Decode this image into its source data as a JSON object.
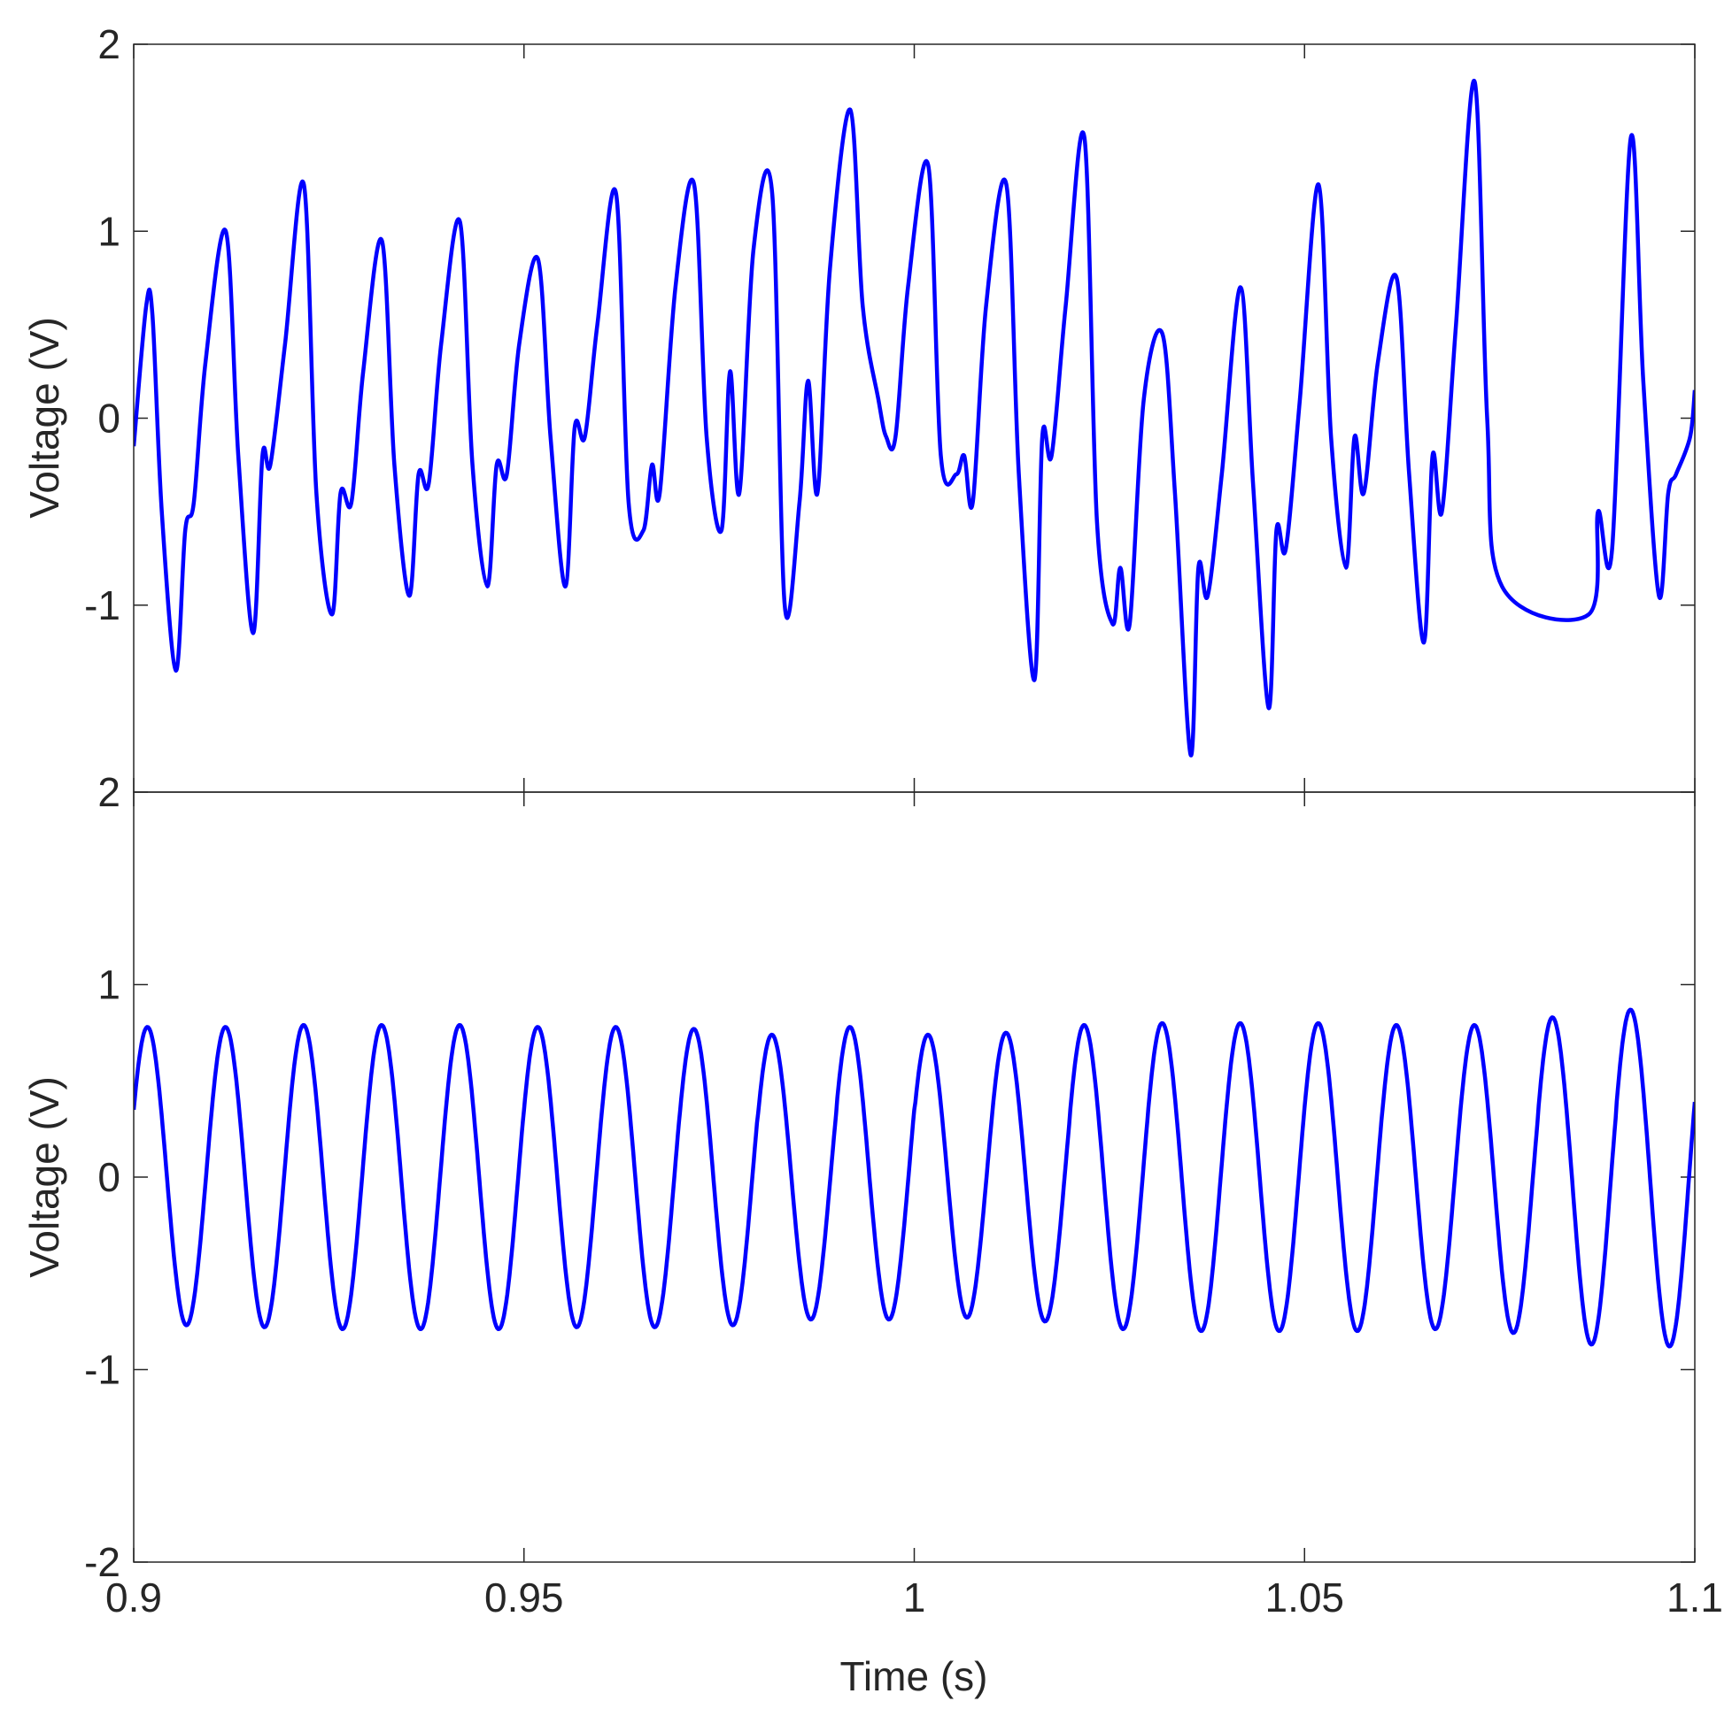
{
  "chart_data": [
    {
      "type": "line",
      "panel": "top",
      "title": "",
      "xlabel": "",
      "ylabel": "Voltage (V)",
      "xlim": [
        0.9,
        1.1
      ],
      "ylim": [
        -2,
        2
      ],
      "yticks": [
        -1,
        0,
        1,
        2
      ],
      "ytick_labels": [
        "-1",
        "0",
        "1",
        "2"
      ],
      "xticks": [
        0.9,
        0.95,
        1.0,
        1.05,
        1.1
      ],
      "grid": false,
      "series": [
        {
          "color": "#0000ff",
          "x": [
            0.9,
            0.9016,
            0.9024,
            0.9036,
            0.9054,
            0.9066,
            0.9077,
            0.9092,
            0.9118,
            0.9134,
            0.9153,
            0.9165,
            0.9175,
            0.9194,
            0.9218,
            0.9234,
            0.9254,
            0.9265,
            0.9279,
            0.9294,
            0.9318,
            0.9334,
            0.9353,
            0.9365,
            0.9378,
            0.9394,
            0.9418,
            0.9434,
            0.9453,
            0.9465,
            0.9478,
            0.9494,
            0.9518,
            0.9534,
            0.9553,
            0.9565,
            0.9578,
            0.9594,
            0.9618,
            0.9634,
            0.9653,
            0.9664,
            0.9674,
            0.9694,
            0.9718,
            0.9734,
            0.9753,
            0.9764,
            0.9776,
            0.9794,
            0.9818,
            0.9834,
            0.9853,
            0.9864,
            0.9876,
            0.9892,
            0.9918,
            0.9934,
            0.9954,
            0.9964,
            0.9976,
            0.9992,
            1.0018,
            1.0034,
            1.0054,
            1.0064,
            1.0075,
            1.0092,
            1.0118,
            1.0134,
            1.0154,
            1.0164,
            1.0176,
            1.0194,
            1.0218,
            1.0234,
            1.0254,
            1.0264,
            1.0276,
            1.0294,
            1.0318,
            1.0334,
            1.0354,
            1.0364,
            1.0376,
            1.0394,
            1.0418,
            1.0434,
            1.0454,
            1.0464,
            1.0476,
            1.0494,
            1.0518,
            1.0534,
            1.0553,
            1.0564,
            1.0576,
            1.0594,
            1.0618,
            1.0634,
            1.0653,
            1.0664,
            1.0676,
            1.0694,
            1.0718,
            1.0734,
            1.0753,
            1.0864,
            1.0876,
            1.0894,
            1.0918,
            1.0934,
            1.0954,
            1.0966,
            1.0976,
            1.0994,
            1.1
          ],
          "y": [
            -0.15,
            0.6,
            0.55,
            -0.5,
            -1.35,
            -0.6,
            -0.45,
            0.3,
            1.0,
            -0.2,
            -1.15,
            -0.2,
            -0.25,
            0.4,
            1.25,
            -0.4,
            -1.05,
            -0.4,
            -0.45,
            0.25,
            0.95,
            -0.25,
            -0.95,
            -0.3,
            -0.35,
            0.4,
            1.05,
            -0.25,
            -0.9,
            -0.25,
            -0.3,
            0.4,
            0.85,
            -0.1,
            -0.9,
            -0.05,
            -0.1,
            0.5,
            1.2,
            -0.45,
            -0.6,
            -0.25,
            -0.4,
            0.7,
            1.25,
            -0.1,
            -0.6,
            0.25,
            -0.4,
            0.9,
            1.2,
            -1.0,
            -0.45,
            0.2,
            -0.4,
            0.8,
            1.65,
            0.6,
            0.1,
            -0.1,
            -0.1,
            0.7,
            1.35,
            -0.2,
            -0.3,
            -0.2,
            -0.45,
            0.6,
            1.25,
            -0.3,
            -1.4,
            -0.1,
            -0.2,
            0.6,
            1.5,
            -0.55,
            -1.1,
            -0.8,
            -1.1,
            0.1,
            0.45,
            -0.4,
            -1.8,
            -0.8,
            -0.95,
            -0.3,
            0.7,
            -0.35,
            -1.55,
            -0.6,
            -0.7,
            0.1,
            1.25,
            -0.1,
            -0.8,
            -0.1,
            -0.4,
            0.3,
            0.75,
            -0.3,
            -1.2,
            -0.2,
            -0.5,
            0.5,
            1.8,
            0.0,
            -0.9,
            -1.05,
            -0.5,
            -0.7,
            1.5,
            0.2,
            -0.95,
            -0.4,
            -0.3,
            -0.1,
            0.15
          ]
        }
      ]
    },
    {
      "type": "line",
      "panel": "bottom",
      "title": "",
      "xlabel": "Time (s)",
      "ylabel": "Voltage (V)",
      "xlim": [
        0.9,
        1.1
      ],
      "ylim": [
        -2,
        2
      ],
      "yticks": [
        -2,
        -1,
        0,
        1,
        2
      ],
      "ytick_labels": [
        "-2",
        "-1",
        "0",
        "1",
        "2"
      ],
      "xticks": [
        0.9,
        0.95,
        1.0,
        1.05,
        1.1
      ],
      "xtick_labels": [
        "0.9",
        "0.95",
        "1",
        "1.05",
        "1.1"
      ],
      "grid": false,
      "series": [
        {
          "color": "#0000ff",
          "frequency_hz": 100,
          "y_at_start": 0.35,
          "y_at_end": 0.4,
          "peaks": [
            0.78,
            0.78,
            0.79,
            0.79,
            0.79,
            0.78,
            0.78,
            0.77,
            0.74,
            0.78,
            0.74,
            0.75,
            0.79,
            0.8,
            0.8,
            0.8,
            0.79,
            0.79,
            0.83,
            0.87
          ],
          "troughs": [
            -0.77,
            -0.78,
            -0.79,
            -0.79,
            -0.79,
            -0.78,
            -0.78,
            -0.77,
            -0.74,
            -0.74,
            -0.73,
            -0.75,
            -0.79,
            -0.8,
            -0.8,
            -0.8,
            -0.79,
            -0.81,
            -0.87,
            -0.88
          ]
        }
      ]
    }
  ]
}
